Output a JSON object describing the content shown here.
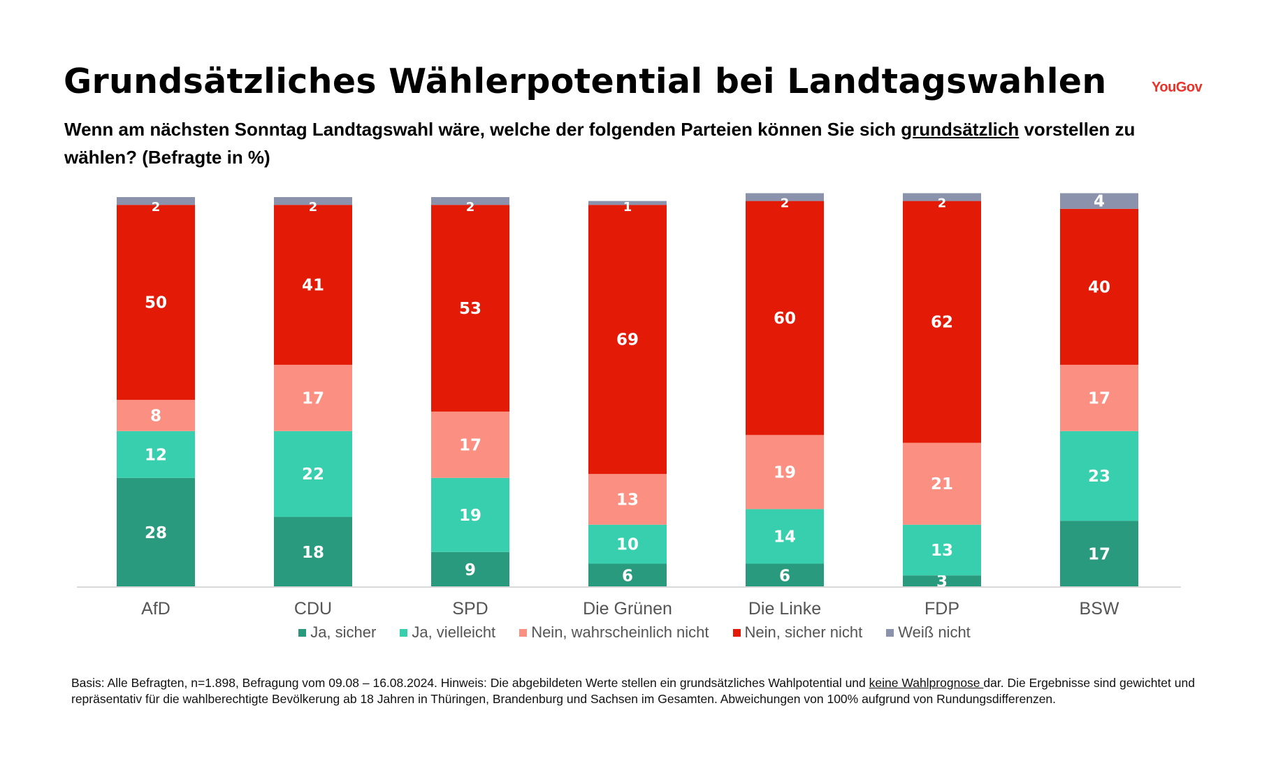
{
  "header": {
    "title": "Grundsätzliches Wählerpotential bei Landtagswahlen",
    "logo_text": "YouGov",
    "subtitle_part1": "Wenn am nächsten Sonntag Landtagswahl wäre, welche der folgenden Parteien können Sie sich ",
    "subtitle_underlined": "grundsätzlich",
    "subtitle_part2": " vorstellen zu wählen? (Befragte in %)"
  },
  "colors": {
    "ja_sicher": "#2a9a7f",
    "ja_vielleicht": "#37cfae",
    "nein_wahrscheinlich": "#fb8f82",
    "nein_sicher": "#e31a06",
    "weiss_nicht": "#8a93ab"
  },
  "chart_data": {
    "type": "bar",
    "stacked": true,
    "categories": [
      "AfD",
      "CDU",
      "SPD",
      "Die Grünen",
      "Die Linke",
      "FDP",
      "BSW"
    ],
    "series": [
      {
        "name": "Ja, sicher",
        "key": "ja_sicher",
        "values": [
          28,
          18,
          9,
          6,
          6,
          3,
          17
        ]
      },
      {
        "name": "Ja, vielleicht",
        "key": "ja_vielleicht",
        "values": [
          12,
          22,
          19,
          10,
          14,
          13,
          23
        ]
      },
      {
        "name": "Nein, wahrscheinlich nicht",
        "key": "nein_wahrscheinlich",
        "values": [
          8,
          17,
          17,
          13,
          19,
          21,
          17
        ]
      },
      {
        "name": "Nein, sicher nicht",
        "key": "nein_sicher",
        "values": [
          50,
          41,
          53,
          69,
          60,
          62,
          40
        ]
      },
      {
        "name": "Weiß nicht",
        "key": "weiss_nicht",
        "values": [
          2,
          2,
          2,
          1,
          2,
          2,
          4
        ]
      }
    ],
    "ylim": [
      0,
      100
    ],
    "grid": false,
    "legend_position": "bottom"
  },
  "footnote": {
    "part1": "Basis: Alle Befragten, n=1.898, Befragung vom 09.08 – 16.08.2024. Hinweis: Die abgebildeten Werte stellen ein grundsätzliches Wahlpotential und ",
    "underlined": "keine Wahlprognose ",
    "part2": "dar. Die Ergebnisse sind gewichtet und repräsentativ für die wahlberechtigte Bevölkerung ab 18 Jahren in Thüringen, Brandenburg und Sachsen im Gesamten. Abweichungen von 100% aufgrund von Rundungsdifferenzen."
  }
}
